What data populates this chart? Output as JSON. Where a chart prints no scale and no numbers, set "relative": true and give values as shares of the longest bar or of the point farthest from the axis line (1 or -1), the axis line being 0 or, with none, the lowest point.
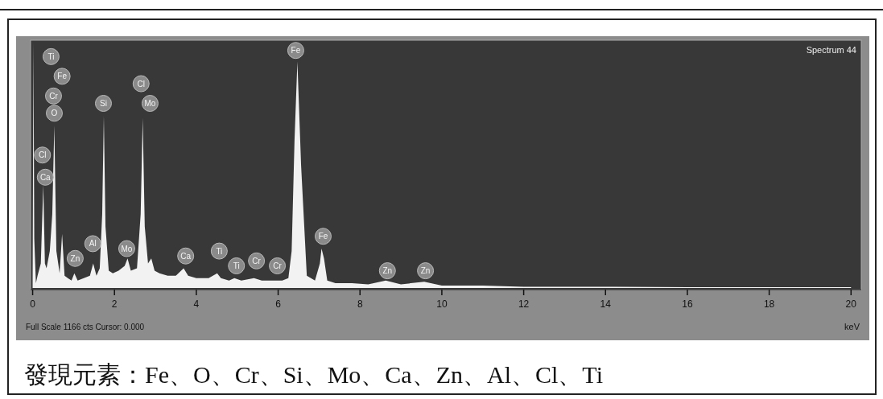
{
  "chart_data": {
    "type": "area",
    "relative": true,
    "xlabel": "keV",
    "xlim": [
      -0.05,
      20.25
    ],
    "xticks": [
      0,
      2,
      4,
      6,
      8,
      10,
      12,
      14,
      16,
      18,
      20
    ],
    "x": [
      0,
      0.02,
      0.04,
      0.08,
      0.12,
      0.2,
      0.26,
      0.3,
      0.34,
      0.42,
      0.48,
      0.53,
      0.58,
      0.66,
      0.72,
      0.78,
      0.86,
      0.95,
      1.02,
      1.1,
      1.25,
      1.4,
      1.48,
      1.56,
      1.64,
      1.7,
      1.74,
      1.78,
      1.86,
      1.96,
      2.1,
      2.25,
      2.32,
      2.4,
      2.55,
      2.64,
      2.69,
      2.74,
      2.82,
      2.9,
      2.98,
      3.1,
      3.3,
      3.5,
      3.69,
      3.8,
      4.0,
      4.3,
      4.51,
      4.6,
      4.8,
      4.93,
      5.1,
      5.41,
      5.6,
      5.9,
      6.1,
      6.25,
      6.33,
      6.4,
      6.47,
      6.56,
      6.7,
      6.9,
      7.02,
      7.06,
      7.12,
      7.2,
      7.4,
      7.8,
      8.2,
      8.63,
      9.0,
      9.57,
      10,
      11,
      12,
      14,
      16,
      18,
      20
    ],
    "series": [
      {
        "color": "#f2f2f2",
        "values": [
          0.02,
          1.0,
          0.2,
          0.02,
          0.05,
          0.1,
          0.42,
          0.1,
          0.08,
          0.15,
          0.3,
          0.66,
          0.15,
          0.06,
          0.22,
          0.05,
          0.04,
          0.03,
          0.06,
          0.03,
          0.04,
          0.05,
          0.1,
          0.05,
          0.08,
          0.3,
          0.7,
          0.25,
          0.07,
          0.06,
          0.07,
          0.09,
          0.12,
          0.07,
          0.08,
          0.3,
          0.69,
          0.25,
          0.1,
          0.12,
          0.07,
          0.06,
          0.05,
          0.05,
          0.08,
          0.05,
          0.04,
          0.04,
          0.06,
          0.04,
          0.03,
          0.04,
          0.03,
          0.04,
          0.03,
          0.03,
          0.03,
          0.04,
          0.15,
          0.6,
          0.92,
          0.5,
          0.05,
          0.03,
          0.1,
          0.16,
          0.12,
          0.03,
          0.02,
          0.02,
          0.015,
          0.03,
          0.015,
          0.025,
          0.01,
          0.01,
          0.005,
          0.005,
          0.003,
          0.003,
          0.003
        ]
      }
    ],
    "annotations": [
      "Spectrum 44",
      "Full Scale 1166 cts Cursor: 0.000",
      "發現元素：Fe、O、Cr、Si、Mo、Ca、Zn、Al、Cl、Ti",
      {
        "text": "Ti",
        "x": 0.45,
        "y": 0.94
      },
      {
        "text": "Fe",
        "x": 0.72,
        "y": 0.86
      },
      {
        "text": "Cr",
        "x": 0.51,
        "y": 0.78
      },
      {
        "text": "O",
        "x": 0.53,
        "y": 0.71
      },
      {
        "text": "Cl",
        "x": 0.24,
        "y": 0.54
      },
      {
        "text": "Ca",
        "x": 0.31,
        "y": 0.45
      },
      {
        "text": "Si",
        "x": 1.73,
        "y": 0.75
      },
      {
        "text": "Cl",
        "x": 2.65,
        "y": 0.83
      },
      {
        "text": "Mo",
        "x": 2.87,
        "y": 0.75
      },
      {
        "text": "Zn",
        "x": 1.04,
        "y": 0.12
      },
      {
        "text": "Al",
        "x": 1.47,
        "y": 0.18
      },
      {
        "text": "Mo",
        "x": 2.3,
        "y": 0.16
      },
      {
        "text": "Ca",
        "x": 3.74,
        "y": 0.13
      },
      {
        "text": "Ti",
        "x": 4.56,
        "y": 0.15
      },
      {
        "text": "Ti",
        "x": 4.98,
        "y": 0.09
      },
      {
        "text": "Cr",
        "x": 5.47,
        "y": 0.11
      },
      {
        "text": "Cr",
        "x": 5.98,
        "y": 0.09
      },
      {
        "text": "Fe",
        "x": 6.43,
        "y": 0.965
      },
      {
        "text": "Fe",
        "x": 7.1,
        "y": 0.21
      },
      {
        "text": "Zn",
        "x": 8.67,
        "y": 0.07
      },
      {
        "text": "Zn",
        "x": 9.6,
        "y": 0.07
      }
    ]
  }
}
